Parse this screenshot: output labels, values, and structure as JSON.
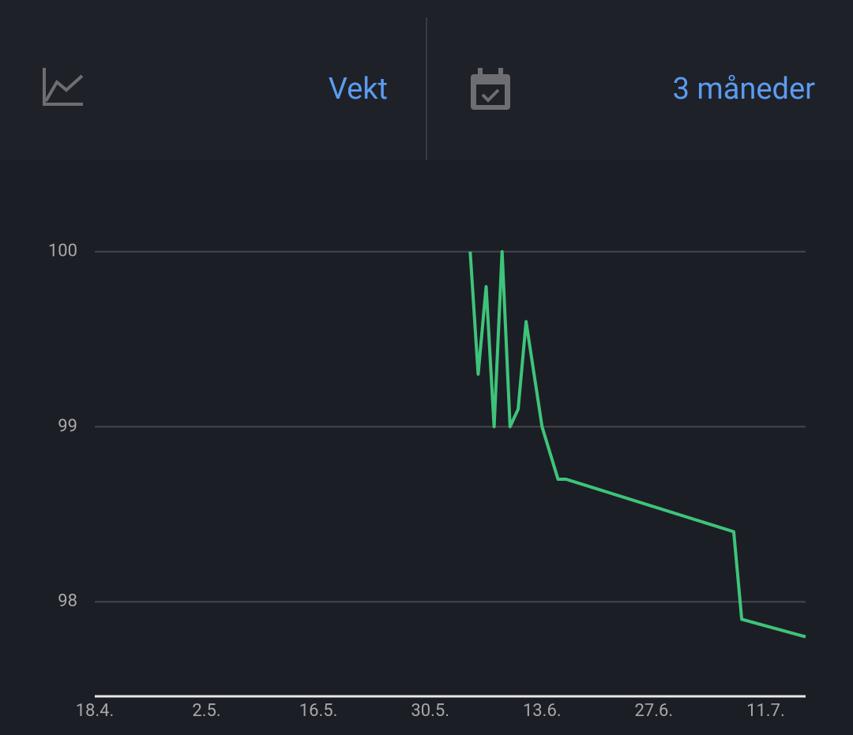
{
  "header": {
    "metric": "Vekt",
    "period": "3 måneder"
  },
  "chart_data": {
    "type": "line",
    "x": [
      "4.6.",
      "5.6.",
      "6.6.",
      "7.6.",
      "8.6.",
      "9.6.",
      "10.6.",
      "11.6.",
      "13.6.",
      "15.6.",
      "16.6.",
      "7.7.",
      "8.7.",
      "16.7."
    ],
    "series": [
      {
        "color": "#3ec47a",
        "values": [
          100,
          99.3,
          99.8,
          99.0,
          100,
          99.0,
          99.1,
          99.6,
          99.0,
          98.7,
          98.7,
          98.4,
          97.9,
          97.8
        ]
      }
    ],
    "xlim": [
      "18.4.",
      "16.7."
    ],
    "xticks": [
      "18.4.",
      "2.5.",
      "16.5.",
      "30.5.",
      "13.6.",
      "27.6.",
      "11.7."
    ],
    "ylim": [
      97.46,
      100.4
    ],
    "yticks": [
      98,
      99,
      100
    ],
    "grid": true
  }
}
